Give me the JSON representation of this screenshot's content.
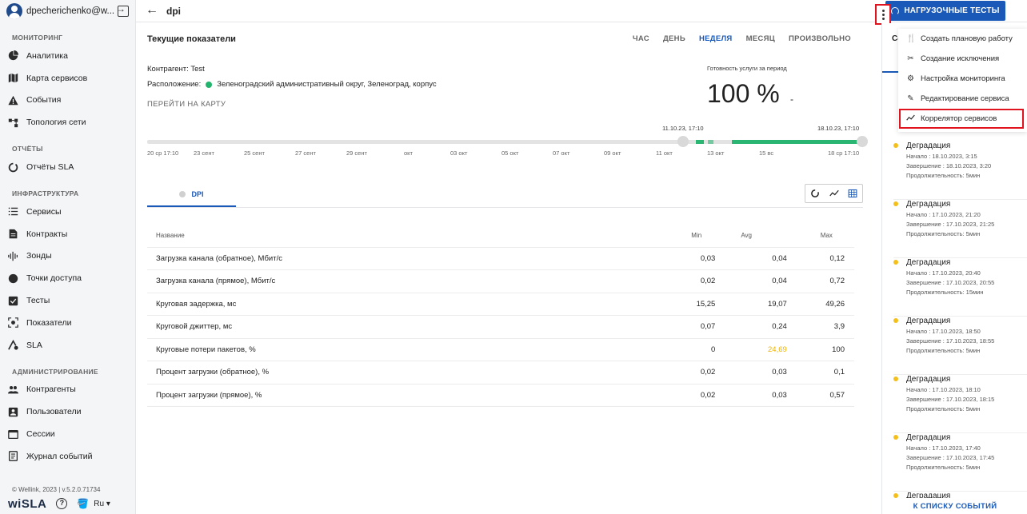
{
  "user": {
    "name": "dpecherichenko@w..."
  },
  "sidebar": {
    "sections": [
      {
        "title": "МОНИТОРИНГ",
        "items": [
          "Аналитика",
          "Карта сервисов",
          "События",
          "Топология сети"
        ]
      },
      {
        "title": "ОТЧЁТЫ",
        "items": [
          "Отчёты SLA"
        ]
      },
      {
        "title": "ИНФРАСТРУКТУРА",
        "items": [
          "Сервисы",
          "Контракты",
          "Зонды",
          "Точки доступа",
          "Тесты",
          "Показатели",
          "SLA"
        ]
      },
      {
        "title": "АДМИНИСТРИРОВАНИЕ",
        "items": [
          "Контрагенты",
          "Пользователи",
          "Сессии",
          "Журнал событий"
        ]
      }
    ],
    "footer": "© Wellink, 2023 | v.5.2.0.71734",
    "brand": "wiSLA",
    "lang": "Ru"
  },
  "topbar": {
    "title": "dpi",
    "load_tests_label": "НАГРУЗОЧНЫЕ ТЕСТЫ"
  },
  "main": {
    "title": "Текущие показатели",
    "periods": [
      "ЧАС",
      "ДЕНЬ",
      "НЕДЕЛЯ",
      "МЕСЯЦ",
      "ПРОИЗВОЛЬНО"
    ],
    "active_period": "НЕДЕЛЯ",
    "contractor": "Контрагент: Test",
    "location_label": "Расположение:",
    "location_value": "Зеленоградский административный округ, Зеленоград, корпус",
    "map_link": "ПЕРЕЙТИ НА КАРТУ",
    "readiness_label": "Готовность услуги за период",
    "readiness_value": "100 %",
    "readiness_dash": "-"
  },
  "timeline": {
    "range_start": "11.10.23, 17:10",
    "range_end": "18.10.23, 17:10",
    "ticks": [
      "20 ср 17:10",
      "23 сент",
      "25 сент",
      "27 сент",
      "29 сент",
      "окт",
      "03 окт",
      "05 окт",
      "07 окт",
      "09 окт",
      "11 окт",
      "13 окт",
      "15 вс",
      "18 ср 17:10"
    ]
  },
  "tabs": {
    "dpi_label": "DPI"
  },
  "table": {
    "headers": {
      "name": "Название",
      "min": "Min",
      "avg": "Avg",
      "max": "Max"
    },
    "rows": [
      {
        "name": "Загрузка канала (обратное), Мбит/с",
        "min": "0,03",
        "avg": "0,04",
        "max": "0,12"
      },
      {
        "name": "Загрузка канала (прямое), Мбит/с",
        "min": "0,02",
        "avg": "0,04",
        "max": "0,72"
      },
      {
        "name": "Круговая задержка, мс",
        "min": "15,25",
        "avg": "19,07",
        "max": "49,26"
      },
      {
        "name": "Круговой джиттер, мс",
        "min": "0,07",
        "avg": "0,24",
        "max": "3,9"
      },
      {
        "name": "Круговые потери пакетов, %",
        "min": "0",
        "avg": "24,69",
        "max": "100"
      },
      {
        "name": "Процент загрузки (обратное), %",
        "min": "0,02",
        "avg": "0,03",
        "max": "0,1"
      },
      {
        "name": "Процент загрузки (прямое), %",
        "min": "0,02",
        "avg": "0,03",
        "max": "0,57"
      }
    ]
  },
  "right_panel": {
    "head": "Со",
    "events": [
      {
        "title": "Деградация",
        "start": "Начало : 18.10.2023, 3:15",
        "end": "Завершение : 18.10.2023, 3:20",
        "duration": "Продолжительность: 5мин"
      },
      {
        "title": "Деградация",
        "start": "Начало : 17.10.2023, 21:20",
        "end": "Завершение : 17.10.2023, 21:25",
        "duration": "Продолжительность: 5мин"
      },
      {
        "title": "Деградация",
        "start": "Начало : 17.10.2023, 20:40",
        "end": "Завершение : 17.10.2023, 20:55",
        "duration": "Продолжительность: 15мин"
      },
      {
        "title": "Деградация",
        "start": "Начало : 17.10.2023, 18:50",
        "end": "Завершение : 17.10.2023, 18:55",
        "duration": "Продолжительность: 5мин"
      },
      {
        "title": "Деградация",
        "start": "Начало : 17.10.2023, 18:10",
        "end": "Завершение : 17.10.2023, 18:15",
        "duration": "Продолжительность: 5мин"
      },
      {
        "title": "Деградация",
        "start": "Начало : 17.10.2023, 17:40",
        "end": "Завершение : 17.10.2023, 17:45",
        "duration": "Продолжительность: 5мин"
      },
      {
        "title": "Деградация"
      }
    ],
    "footer": "К СПИСКУ СОБЫТИЙ"
  },
  "menu": {
    "items": [
      {
        "label": "Создать плановую работу",
        "icon": "tools-icon"
      },
      {
        "label": "Создание исключения",
        "icon": "scissors-icon"
      },
      {
        "label": "Настройка мониторинга",
        "icon": "monitoring-settings-icon"
      },
      {
        "label": "Редактирование сервиса",
        "icon": "pencil-icon"
      },
      {
        "label": "Коррелятор сервисов",
        "icon": "trend-icon"
      }
    ]
  },
  "colors": {
    "accent": "#1a59b7",
    "status_ok": "#22b46d",
    "warning": "#f4bf1a",
    "highlight": "#e0141e"
  }
}
